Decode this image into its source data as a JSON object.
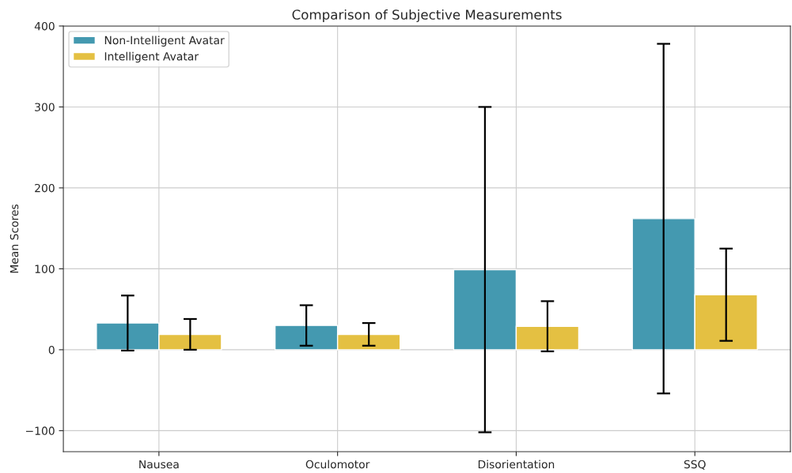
{
  "chart_data": {
    "type": "bar",
    "title": "Comparison of Subjective Measurements",
    "ylabel": "Mean Scores",
    "categories": [
      "Nausea",
      "Oculomotor",
      "Disorientation",
      "SSQ"
    ],
    "series": [
      {
        "name": "Non-Intelligent Avatar",
        "color": "#4499b0",
        "values": [
          33,
          30,
          99,
          162
        ],
        "errors": [
          34,
          25,
          201,
          216
        ]
      },
      {
        "name": "Intelligent Avatar",
        "color": "#e4c042",
        "values": [
          19,
          19,
          29,
          68
        ],
        "errors": [
          19,
          14,
          31,
          57
        ]
      }
    ],
    "ylim": [
      -126,
      400
    ],
    "yticks": [
      {
        "value": -100,
        "label": "−100"
      },
      0,
      100,
      200,
      300,
      400
    ],
    "grid": true,
    "legend": "top left"
  }
}
